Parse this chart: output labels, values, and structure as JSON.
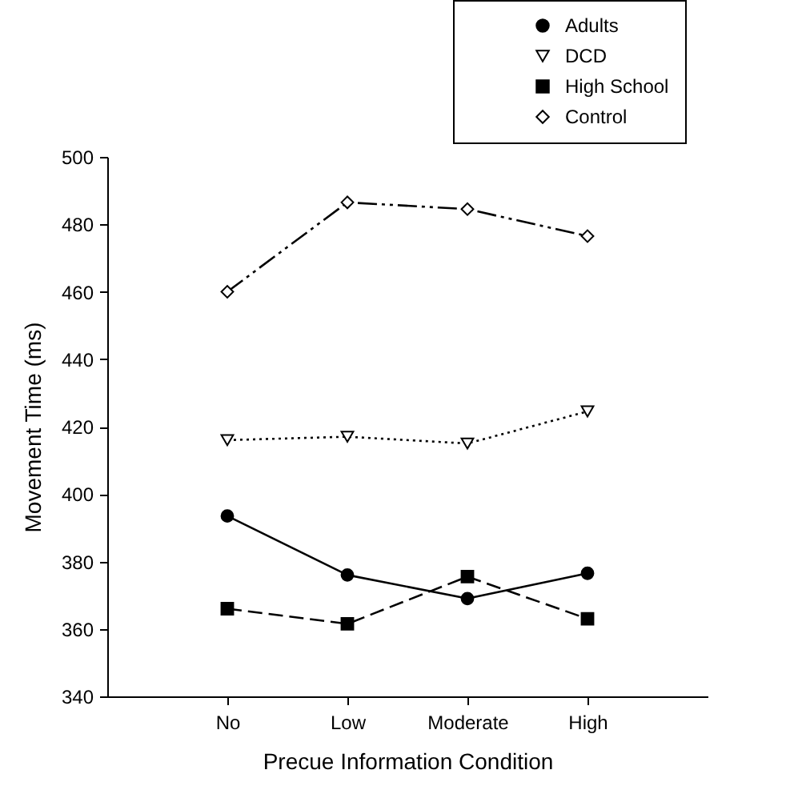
{
  "chart_data": {
    "type": "line",
    "xlabel": "Precue Information Condition",
    "ylabel": "Movement Time (ms)",
    "categories": [
      "No",
      "Low",
      "Moderate",
      "High"
    ],
    "series": [
      {
        "name": "Adults",
        "color": "#000000",
        "marker": "circle",
        "line_style": "solid",
        "values": [
          393.5,
          376,
          369,
          376.5
        ]
      },
      {
        "name": "DCD",
        "color": "#000000",
        "marker": "triangle",
        "line_style": "dotted",
        "values": [
          416,
          417,
          415,
          424.5
        ]
      },
      {
        "name": "High School",
        "color": "#000000",
        "marker": "square",
        "line_style": "dashed",
        "values": [
          366,
          361.5,
          375.5,
          363
        ]
      },
      {
        "name": "Control",
        "color": "#000000",
        "marker": "diamond",
        "line_style": "dashdotdot",
        "values": [
          460,
          486.5,
          484.5,
          476.5
        ]
      }
    ],
    "ylim": [
      340,
      500
    ],
    "yticks": [
      340,
      360,
      380,
      400,
      420,
      440,
      460,
      480,
      500
    ],
    "grid": false,
    "legend": "top right"
  }
}
